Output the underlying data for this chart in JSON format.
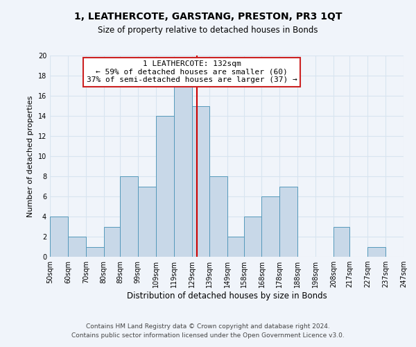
{
  "title": "1, LEATHERCOTE, GARSTANG, PRESTON, PR3 1QT",
  "subtitle": "Size of property relative to detached houses in Bonds",
  "xlabel": "Distribution of detached houses by size in Bonds",
  "ylabel": "Number of detached properties",
  "footer_line1": "Contains HM Land Registry data © Crown copyright and database right 2024.",
  "footer_line2": "Contains public sector information licensed under the Open Government Licence v3.0.",
  "annotation_title": "1 LEATHERCOTE: 132sqm",
  "annotation_line2": "← 59% of detached houses are smaller (60)",
  "annotation_line3": "37% of semi-detached houses are larger (37) →",
  "bar_color": "#c8d8e8",
  "bar_edge_color": "#5599bb",
  "reference_line_color": "#cc0000",
  "reference_line_x": 132,
  "bins": [
    50,
    60,
    70,
    80,
    89,
    99,
    109,
    119,
    129,
    139,
    149,
    158,
    168,
    178,
    188,
    198,
    208,
    217,
    227,
    237,
    247
  ],
  "counts": [
    4,
    2,
    1,
    3,
    8,
    7,
    14,
    17,
    15,
    8,
    2,
    4,
    6,
    7,
    0,
    0,
    3,
    0,
    1,
    0
  ],
  "xlim": [
    50,
    247
  ],
  "ylim": [
    0,
    20
  ],
  "yticks": [
    0,
    2,
    4,
    6,
    8,
    10,
    12,
    14,
    16,
    18,
    20
  ],
  "xtick_labels": [
    "50sqm",
    "60sqm",
    "70sqm",
    "80sqm",
    "89sqm",
    "99sqm",
    "109sqm",
    "119sqm",
    "129sqm",
    "139sqm",
    "149sqm",
    "158sqm",
    "168sqm",
    "178sqm",
    "188sqm",
    "198sqm",
    "208sqm",
    "217sqm",
    "227sqm",
    "237sqm",
    "247sqm"
  ],
  "xtick_positions": [
    50,
    60,
    70,
    80,
    89,
    99,
    109,
    119,
    129,
    139,
    149,
    158,
    168,
    178,
    188,
    198,
    208,
    217,
    227,
    237,
    247
  ],
  "grid_color": "#d8e4f0",
  "background_color": "#f0f4fa",
  "annotation_box_edge": "#cc2222",
  "annotation_box_face": "#ffffff",
  "title_fontsize": 10,
  "subtitle_fontsize": 8.5,
  "ylabel_fontsize": 8,
  "xlabel_fontsize": 8.5,
  "tick_fontsize": 7,
  "annotation_fontsize": 8,
  "footer_fontsize": 6.5
}
